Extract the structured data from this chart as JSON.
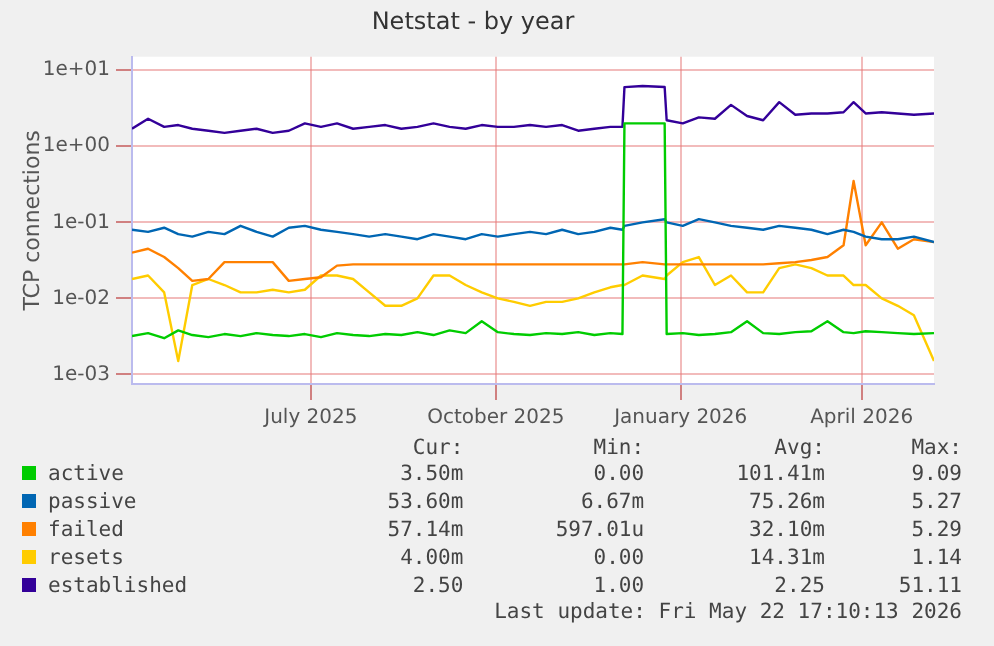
{
  "chart_data": {
    "type": "line",
    "title": "Netstat - by year",
    "ylabel": "TCP connections",
    "log": true,
    "grid": true,
    "legend": "bottom",
    "marker": "none",
    "x": [
      "2025-04-18",
      "2025-04-26",
      "2025-05-04",
      "2025-05-11",
      "2025-05-18",
      "2025-05-26",
      "2025-06-03",
      "2025-06-11",
      "2025-06-19",
      "2025-06-27",
      "2025-07-05",
      "2025-07-13",
      "2025-07-21",
      "2025-07-29",
      "2025-08-06",
      "2025-08-14",
      "2025-08-22",
      "2025-08-30",
      "2025-09-07",
      "2025-09-15",
      "2025-09-23",
      "2025-10-01",
      "2025-10-09",
      "2025-10-17",
      "2025-10-25",
      "2025-11-02",
      "2025-11-10",
      "2025-11-18",
      "2025-11-26",
      "2025-12-04",
      "2025-12-12",
      "2025-12-18",
      "2025-12-19",
      "2025-12-28",
      "2026-01-08",
      "2026-01-09",
      "2026-01-17",
      "2026-01-25",
      "2026-02-02",
      "2026-02-10",
      "2026-02-18",
      "2026-02-26",
      "2026-03-06",
      "2026-03-14",
      "2026-03-22",
      "2026-03-30",
      "2026-04-07",
      "2026-04-12",
      "2026-04-18",
      "2026-04-26",
      "2026-05-04",
      "2026-05-12",
      "2026-05-22"
    ],
    "xlim": [
      "2025-04-18",
      "2026-05-22"
    ],
    "xticks": [
      {
        "value": "2025-07-16",
        "label": "July 2025"
      },
      {
        "value": "2025-10-16",
        "label": "October 2025"
      },
      {
        "value": "2026-01-16",
        "label": "January 2026"
      },
      {
        "value": "2026-04-16",
        "label": "April 2026"
      }
    ],
    "ylim": [
      0.00075,
      15
    ],
    "yticks": [
      {
        "value": 0.001,
        "label": "1e-03"
      },
      {
        "value": 0.01,
        "label": "1e-02"
      },
      {
        "value": 0.1,
        "label": "1e-01"
      },
      {
        "value": 1,
        "label": "1e+00"
      },
      {
        "value": 10,
        "label": "1e+01"
      }
    ],
    "series": [
      {
        "name": "active",
        "color": "#00cc00",
        "values": [
          0.0032,
          0.0035,
          0.003,
          0.0038,
          0.0033,
          0.0031,
          0.0034,
          0.0032,
          0.0035,
          0.0033,
          0.0032,
          0.0034,
          0.0031,
          0.0035,
          0.0033,
          0.0032,
          0.0034,
          0.0033,
          0.0036,
          0.0033,
          0.0038,
          0.0035,
          0.005,
          0.0036,
          0.0034,
          0.0033,
          0.0035,
          0.0034,
          0.0036,
          0.0033,
          0.0035,
          0.0034,
          2.0,
          2.0,
          2.0,
          0.0034,
          0.0035,
          0.0033,
          0.0034,
          0.0036,
          0.005,
          0.0035,
          0.0034,
          0.0036,
          0.0037,
          0.005,
          0.0036,
          0.0035,
          0.0037,
          0.0036,
          0.0035,
          0.0034,
          0.0035
        ]
      },
      {
        "name": "passive",
        "color": "#0066b3",
        "values": [
          0.08,
          0.075,
          0.085,
          0.07,
          0.065,
          0.075,
          0.07,
          0.09,
          0.075,
          0.065,
          0.085,
          0.09,
          0.08,
          0.075,
          0.07,
          0.065,
          0.07,
          0.065,
          0.06,
          0.07,
          0.065,
          0.06,
          0.07,
          0.065,
          0.07,
          0.075,
          0.07,
          0.08,
          0.07,
          0.075,
          0.085,
          0.08,
          0.09,
          0.1,
          0.11,
          0.1,
          0.09,
          0.11,
          0.1,
          0.09,
          0.085,
          0.08,
          0.09,
          0.085,
          0.08,
          0.07,
          0.08,
          0.075,
          0.065,
          0.06,
          0.06,
          0.065,
          0.055
        ]
      },
      {
        "name": "failed",
        "color": "#ff8000",
        "values": [
          0.04,
          0.045,
          0.035,
          0.025,
          0.017,
          0.018,
          0.03,
          0.03,
          0.03,
          0.03,
          0.017,
          0.018,
          0.019,
          0.027,
          0.028,
          0.028,
          0.028,
          0.028,
          0.028,
          0.028,
          0.028,
          0.028,
          0.028,
          0.028,
          0.028,
          0.028,
          0.028,
          0.028,
          0.028,
          0.028,
          0.028,
          0.028,
          0.028,
          0.03,
          0.028,
          0.028,
          0.028,
          0.028,
          0.028,
          0.028,
          0.028,
          0.028,
          0.029,
          0.03,
          0.032,
          0.035,
          0.05,
          0.35,
          0.05,
          0.1,
          0.045,
          0.06,
          0.055
        ]
      },
      {
        "name": "resets",
        "color": "#ffcc00",
        "values": [
          0.018,
          0.02,
          0.012,
          0.0015,
          0.015,
          0.018,
          0.015,
          0.012,
          0.012,
          0.013,
          0.012,
          0.013,
          0.02,
          0.02,
          0.018,
          0.012,
          0.008,
          0.008,
          0.01,
          0.02,
          0.02,
          0.015,
          0.012,
          0.01,
          0.009,
          0.008,
          0.009,
          0.009,
          0.01,
          0.012,
          0.014,
          0.015,
          0.015,
          0.02,
          0.018,
          0.02,
          0.03,
          0.035,
          0.015,
          0.02,
          0.012,
          0.012,
          0.025,
          0.028,
          0.025,
          0.02,
          0.02,
          0.015,
          0.015,
          0.01,
          0.008,
          0.006,
          0.0015
        ]
      },
      {
        "name": "established",
        "color": "#330099",
        "values": [
          1.7,
          2.3,
          1.8,
          1.9,
          1.7,
          1.6,
          1.5,
          1.6,
          1.7,
          1.5,
          1.6,
          2.0,
          1.8,
          2.0,
          1.7,
          1.8,
          1.9,
          1.7,
          1.8,
          2.0,
          1.8,
          1.7,
          1.9,
          1.8,
          1.8,
          1.9,
          1.8,
          1.9,
          1.6,
          1.7,
          1.8,
          1.8,
          6.0,
          6.2,
          6.0,
          2.2,
          2.0,
          2.4,
          2.3,
          3.5,
          2.5,
          2.2,
          3.8,
          2.6,
          2.7,
          2.7,
          2.8,
          3.8,
          2.7,
          2.8,
          2.7,
          2.6,
          2.7
        ]
      }
    ],
    "annotations": [
      "Cur:",
      "Min:",
      "Avg:",
      "Max:",
      "3.50m",
      "0.00",
      "101.41m",
      "9.09",
      "53.60m",
      "6.67m",
      "75.26m",
      "5.27",
      "57.14m",
      "597.01u",
      "32.10m",
      "5.29",
      "4.00m",
      "0.00",
      "14.31m",
      "1.14",
      "2.50",
      "1.00",
      "2.25",
      "51.11",
      "Last update: Fri May 22 17:10:13 2026"
    ]
  }
}
